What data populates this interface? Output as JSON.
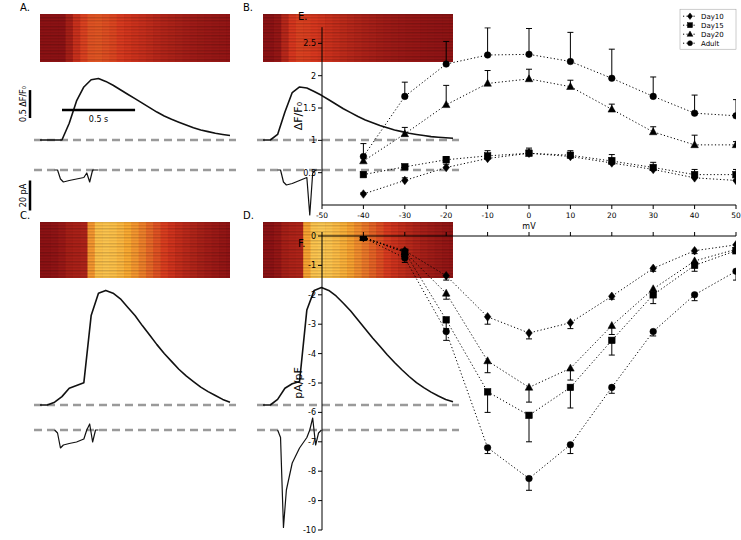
{
  "chart_data": [
    {
      "type": "line",
      "title": "A.",
      "color": "#111111",
      "tick_labels": false,
      "baseline": 0,
      "x": [
        0,
        0.05,
        0.1,
        0.15,
        0.2,
        0.25,
        0.3,
        0.35,
        0.4,
        0.45,
        0.5,
        0.55,
        0.6,
        0.65,
        0.7,
        0.75,
        0.8,
        0.85,
        0.9,
        0.95,
        1,
        1.05,
        1.1,
        1.15,
        1.2,
        1.25,
        1.3
      ],
      "values": [
        0,
        0,
        0,
        0,
        0.3,
        0.7,
        0.95,
        1.08,
        1.1,
        1.05,
        0.98,
        0.9,
        0.82,
        0.74,
        0.66,
        0.58,
        0.5,
        0.43,
        0.37,
        0.32,
        0.27,
        0.22,
        0.18,
        0.15,
        0.12,
        0.1,
        0.08
      ],
      "xlim": [
        0,
        1.3
      ],
      "ylim": [
        0,
        1.2
      ],
      "current": {
        "baseline": 0,
        "x": [
          0.1,
          0.12,
          0.14,
          0.16,
          0.2,
          0.25,
          0.3,
          0.32,
          0.34,
          0.36,
          0.38,
          0.4
        ],
        "values": [
          0,
          0,
          -6,
          -8,
          -7,
          -6,
          -5,
          -2,
          -8,
          0,
          0,
          0
        ],
        "ylim": [
          -35,
          5
        ]
      },
      "scale_bars": [
        {
          "value": 0.5,
          "label": "0.5 ΔF/F₀"
        },
        {
          "value": 0.5,
          "label": "0.5 s"
        },
        {
          "value": 20,
          "label": "20 pA"
        }
      ]
    },
    {
      "type": "line",
      "title": "B.",
      "color": "#111111",
      "tick_labels": false,
      "baseline": 0,
      "x": [
        0,
        0.05,
        0.1,
        0.15,
        0.2,
        0.25,
        0.3,
        0.35,
        0.4,
        0.45,
        0.5,
        0.55,
        0.6,
        0.65,
        0.7,
        0.75,
        0.8,
        0.85,
        0.9,
        0.95,
        1,
        1.05,
        1.1,
        1.15,
        1.2,
        1.25,
        1.3
      ],
      "values": [
        0,
        0,
        0.1,
        0.5,
        0.85,
        0.95,
        0.93,
        0.87,
        0.8,
        0.72,
        0.64,
        0.56,
        0.49,
        0.42,
        0.36,
        0.31,
        0.26,
        0.22,
        0.18,
        0.15,
        0.12,
        0.1,
        0.08,
        0.06,
        0.05,
        0.04,
        0.03
      ],
      "xlim": [
        0,
        1.3
      ],
      "ylim": [
        0,
        1.2
      ],
      "current": {
        "baseline": 0,
        "x": [
          0.1,
          0.12,
          0.14,
          0.16,
          0.2,
          0.25,
          0.3,
          0.32,
          0.34,
          0.36,
          0.38,
          0.4
        ],
        "values": [
          0,
          0,
          -8,
          -10,
          -9,
          -7,
          -5,
          -30,
          -2,
          0,
          0,
          0
        ],
        "ylim": [
          -35,
          5
        ]
      }
    },
    {
      "type": "line",
      "title": "C.",
      "color": "#111111",
      "tick_labels": false,
      "baseline": 0,
      "x": [
        0,
        0.05,
        0.1,
        0.15,
        0.2,
        0.25,
        0.3,
        0.35,
        0.4,
        0.45,
        0.5,
        0.55,
        0.6,
        0.65,
        0.7,
        0.75,
        0.8,
        0.85,
        0.9,
        0.95,
        1,
        1.05,
        1.1,
        1.15,
        1.2,
        1.25,
        1.3
      ],
      "values": [
        0,
        0,
        0.05,
        0.15,
        0.3,
        0.35,
        0.4,
        1.6,
        2,
        2.05,
        2,
        1.9,
        1.75,
        1.6,
        1.42,
        1.25,
        1.08,
        0.92,
        0.78,
        0.64,
        0.52,
        0.42,
        0.32,
        0.24,
        0.17,
        0.1,
        0.05
      ],
      "xlim": [
        0,
        1.3
      ],
      "ylim": [
        0,
        2.2
      ],
      "current": {
        "baseline": 0,
        "x": [
          0.1,
          0.12,
          0.14,
          0.16,
          0.2,
          0.25,
          0.3,
          0.32,
          0.34,
          0.36,
          0.38,
          0.4
        ],
        "values": [
          0,
          -2,
          -12,
          -10,
          -9,
          -8,
          -6,
          0,
          4,
          -8,
          0,
          0
        ],
        "ylim": [
          -70,
          10
        ]
      }
    },
    {
      "type": "line",
      "title": "D.",
      "color": "#111111",
      "tick_labels": false,
      "baseline": 0,
      "x": [
        0,
        0.05,
        0.1,
        0.15,
        0.2,
        0.25,
        0.3,
        0.35,
        0.4,
        0.45,
        0.5,
        0.55,
        0.6,
        0.65,
        0.7,
        0.75,
        0.8,
        0.85,
        0.9,
        0.95,
        1,
        1.05,
        1.1,
        1.15,
        1.2,
        1.25,
        1.3
      ],
      "values": [
        0,
        0,
        0.1,
        0.3,
        0.38,
        0.42,
        1.7,
        2.05,
        2.1,
        2.05,
        1.95,
        1.82,
        1.68,
        1.52,
        1.36,
        1.2,
        1.05,
        0.9,
        0.76,
        0.63,
        0.51,
        0.4,
        0.31,
        0.23,
        0.16,
        0.1,
        0.06
      ],
      "xlim": [
        0,
        1.3
      ],
      "ylim": [
        0,
        2.2
      ],
      "current": {
        "baseline": 0,
        "x": [
          0.1,
          0.12,
          0.14,
          0.16,
          0.2,
          0.25,
          0.3,
          0.32,
          0.34,
          0.36,
          0.38,
          0.4
        ],
        "values": [
          0,
          -5,
          -65,
          -40,
          -22,
          -12,
          -5,
          0,
          8,
          -10,
          -2,
          0
        ],
        "ylim": [
          -70,
          10
        ]
      }
    },
    {
      "type": "line",
      "title": "E.",
      "xlabel": "mV",
      "ylabel": "ΔF/F₀",
      "legend": "upper right",
      "line_style": "dotted",
      "x": [
        -40,
        -30,
        -20,
        -10,
        0,
        10,
        20,
        30,
        40,
        50
      ],
      "xlim": [
        -50,
        50
      ],
      "xticks": [
        -50,
        -40,
        -30,
        -20,
        -10,
        0,
        10,
        20,
        30,
        40,
        50
      ],
      "ylim": [
        0,
        2.75
      ],
      "yticks": [
        0.5,
        1,
        1.5,
        2,
        2.5
      ],
      "series": [
        {
          "name": "Day10",
          "color": "#000000",
          "marker": "diamond",
          "values": [
            0.17,
            0.38,
            0.58,
            0.72,
            0.8,
            0.75,
            0.65,
            0.55,
            0.42,
            0.38
          ],
          "errors": [
            0.02,
            0.04,
            0.05,
            0.05,
            0.05,
            0.06,
            0.08,
            0.06,
            0.06,
            0.1
          ]
        },
        {
          "name": "Day15",
          "color": "#000000",
          "marker": "square",
          "values": [
            0.47,
            0.59,
            0.7,
            0.76,
            0.8,
            0.77,
            0.68,
            0.58,
            0.47,
            0.47
          ],
          "errors": [
            0.04,
            0.04,
            0.05,
            0.08,
            0.08,
            0.07,
            0.1,
            0.08,
            0.08,
            0.08
          ]
        },
        {
          "name": "Day20",
          "color": "#000000",
          "marker": "triangle",
          "values": [
            0.68,
            1.1,
            1.55,
            1.88,
            1.95,
            1.83,
            1.48,
            1.13,
            0.93,
            0.93
          ],
          "errors": [
            0.08,
            0.1,
            0.3,
            0.2,
            0.15,
            0.1,
            0.08,
            0.08,
            0.15,
            0.05
          ]
        },
        {
          "name": "Adult",
          "color": "#000000",
          "marker": "circle",
          "values": [
            0.75,
            1.68,
            2.18,
            2.32,
            2.33,
            2.22,
            1.96,
            1.68,
            1.42,
            1.38
          ],
          "errors": [
            0.2,
            0.22,
            0.35,
            0.42,
            0.4,
            0.45,
            0.45,
            0.3,
            0.28,
            0.25
          ]
        }
      ]
    },
    {
      "type": "line",
      "title": "F.",
      "ylabel": "pA/pF",
      "tick_labels": "y",
      "line_style": "dotted",
      "x": [
        -40,
        -30,
        -20,
        -10,
        0,
        10,
        20,
        30,
        40,
        50
      ],
      "xlim": [
        -50,
        50
      ],
      "xticks": [
        -50,
        -40,
        -30,
        -20,
        -10,
        0,
        10,
        20,
        30,
        40,
        50
      ],
      "ylim": [
        -10,
        0
      ],
      "yticks": [
        0,
        -1,
        -2,
        -3,
        -4,
        -5,
        -6,
        -7,
        -8,
        -9,
        -10
      ],
      "series": [
        {
          "name": "Day10",
          "color": "#000000",
          "marker": "diamond",
          "values": [
            -0.05,
            -0.5,
            -1.35,
            -2.75,
            -3.3,
            -2.95,
            -2.05,
            -1.1,
            -0.5,
            -0.3
          ],
          "errors": [
            0.05,
            0.1,
            0.15,
            0.25,
            0.2,
            0.2,
            0.1,
            0.1,
            0.1,
            0.1
          ]
        },
        {
          "name": "Day15",
          "color": "#000000",
          "marker": "square",
          "values": [
            -0.05,
            -0.55,
            -2.85,
            -5.3,
            -6.1,
            -5.15,
            -3.55,
            -2,
            -1,
            -0.5
          ],
          "errors": [
            0.05,
            0.1,
            0.3,
            0.7,
            0.9,
            0.7,
            0.5,
            0.3,
            0.2,
            0.1
          ]
        },
        {
          "name": "Day20",
          "color": "#000000",
          "marker": "triangle",
          "values": [
            -0.05,
            -0.55,
            -1.95,
            -4.25,
            -5.15,
            -4.5,
            -3.05,
            -1.8,
            -0.85,
            -0.45
          ],
          "errors": [
            0.05,
            0.1,
            0.2,
            0.4,
            0.5,
            0.4,
            0.3,
            0.2,
            0.1,
            0.1
          ]
        },
        {
          "name": "Adult",
          "color": "#000000",
          "marker": "circle",
          "values": [
            -0.05,
            -0.75,
            -3.25,
            -7.2,
            -8.25,
            -7.1,
            -5.15,
            -3.25,
            -2,
            -1.2
          ],
          "errors": [
            0.05,
            0.15,
            0.3,
            0.2,
            0.4,
            0.3,
            0.2,
            0.15,
            0.2,
            0.3
          ]
        }
      ]
    }
  ]
}
